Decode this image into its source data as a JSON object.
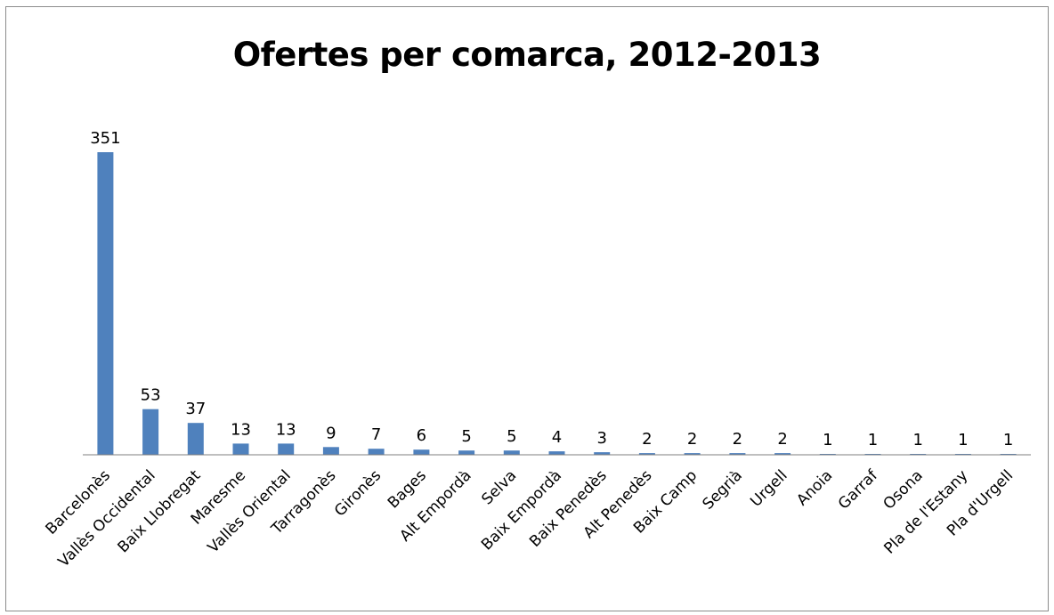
{
  "chart_data": {
    "type": "bar",
    "title": "Ofertes per comarca, 2012-2013",
    "xlabel": "",
    "ylabel": "",
    "ylim": [
      0,
      351
    ],
    "grid": false,
    "legend": "none",
    "colors": {
      "bar": "#4f81bd",
      "axis": "#7f7f7f"
    },
    "categories": [
      "Barcelonès",
      "Vallès Occidental",
      "Baix Llobregat",
      "Maresme",
      "Vallès Oriental",
      "Tarragonès",
      "Gironès",
      "Bages",
      "Alt Empordà",
      "Selva",
      "Baix Empordà",
      "Baix Penedès",
      "Alt Penedès",
      "Baix Camp",
      "Segrià",
      "Urgell",
      "Anoia",
      "Garraf",
      "Osona",
      "Pla de l'Estany",
      "Pla d'Urgell"
    ],
    "values": [
      351,
      53,
      37,
      13,
      13,
      9,
      7,
      6,
      5,
      5,
      4,
      3,
      2,
      2,
      2,
      2,
      1,
      1,
      1,
      1,
      1
    ]
  }
}
